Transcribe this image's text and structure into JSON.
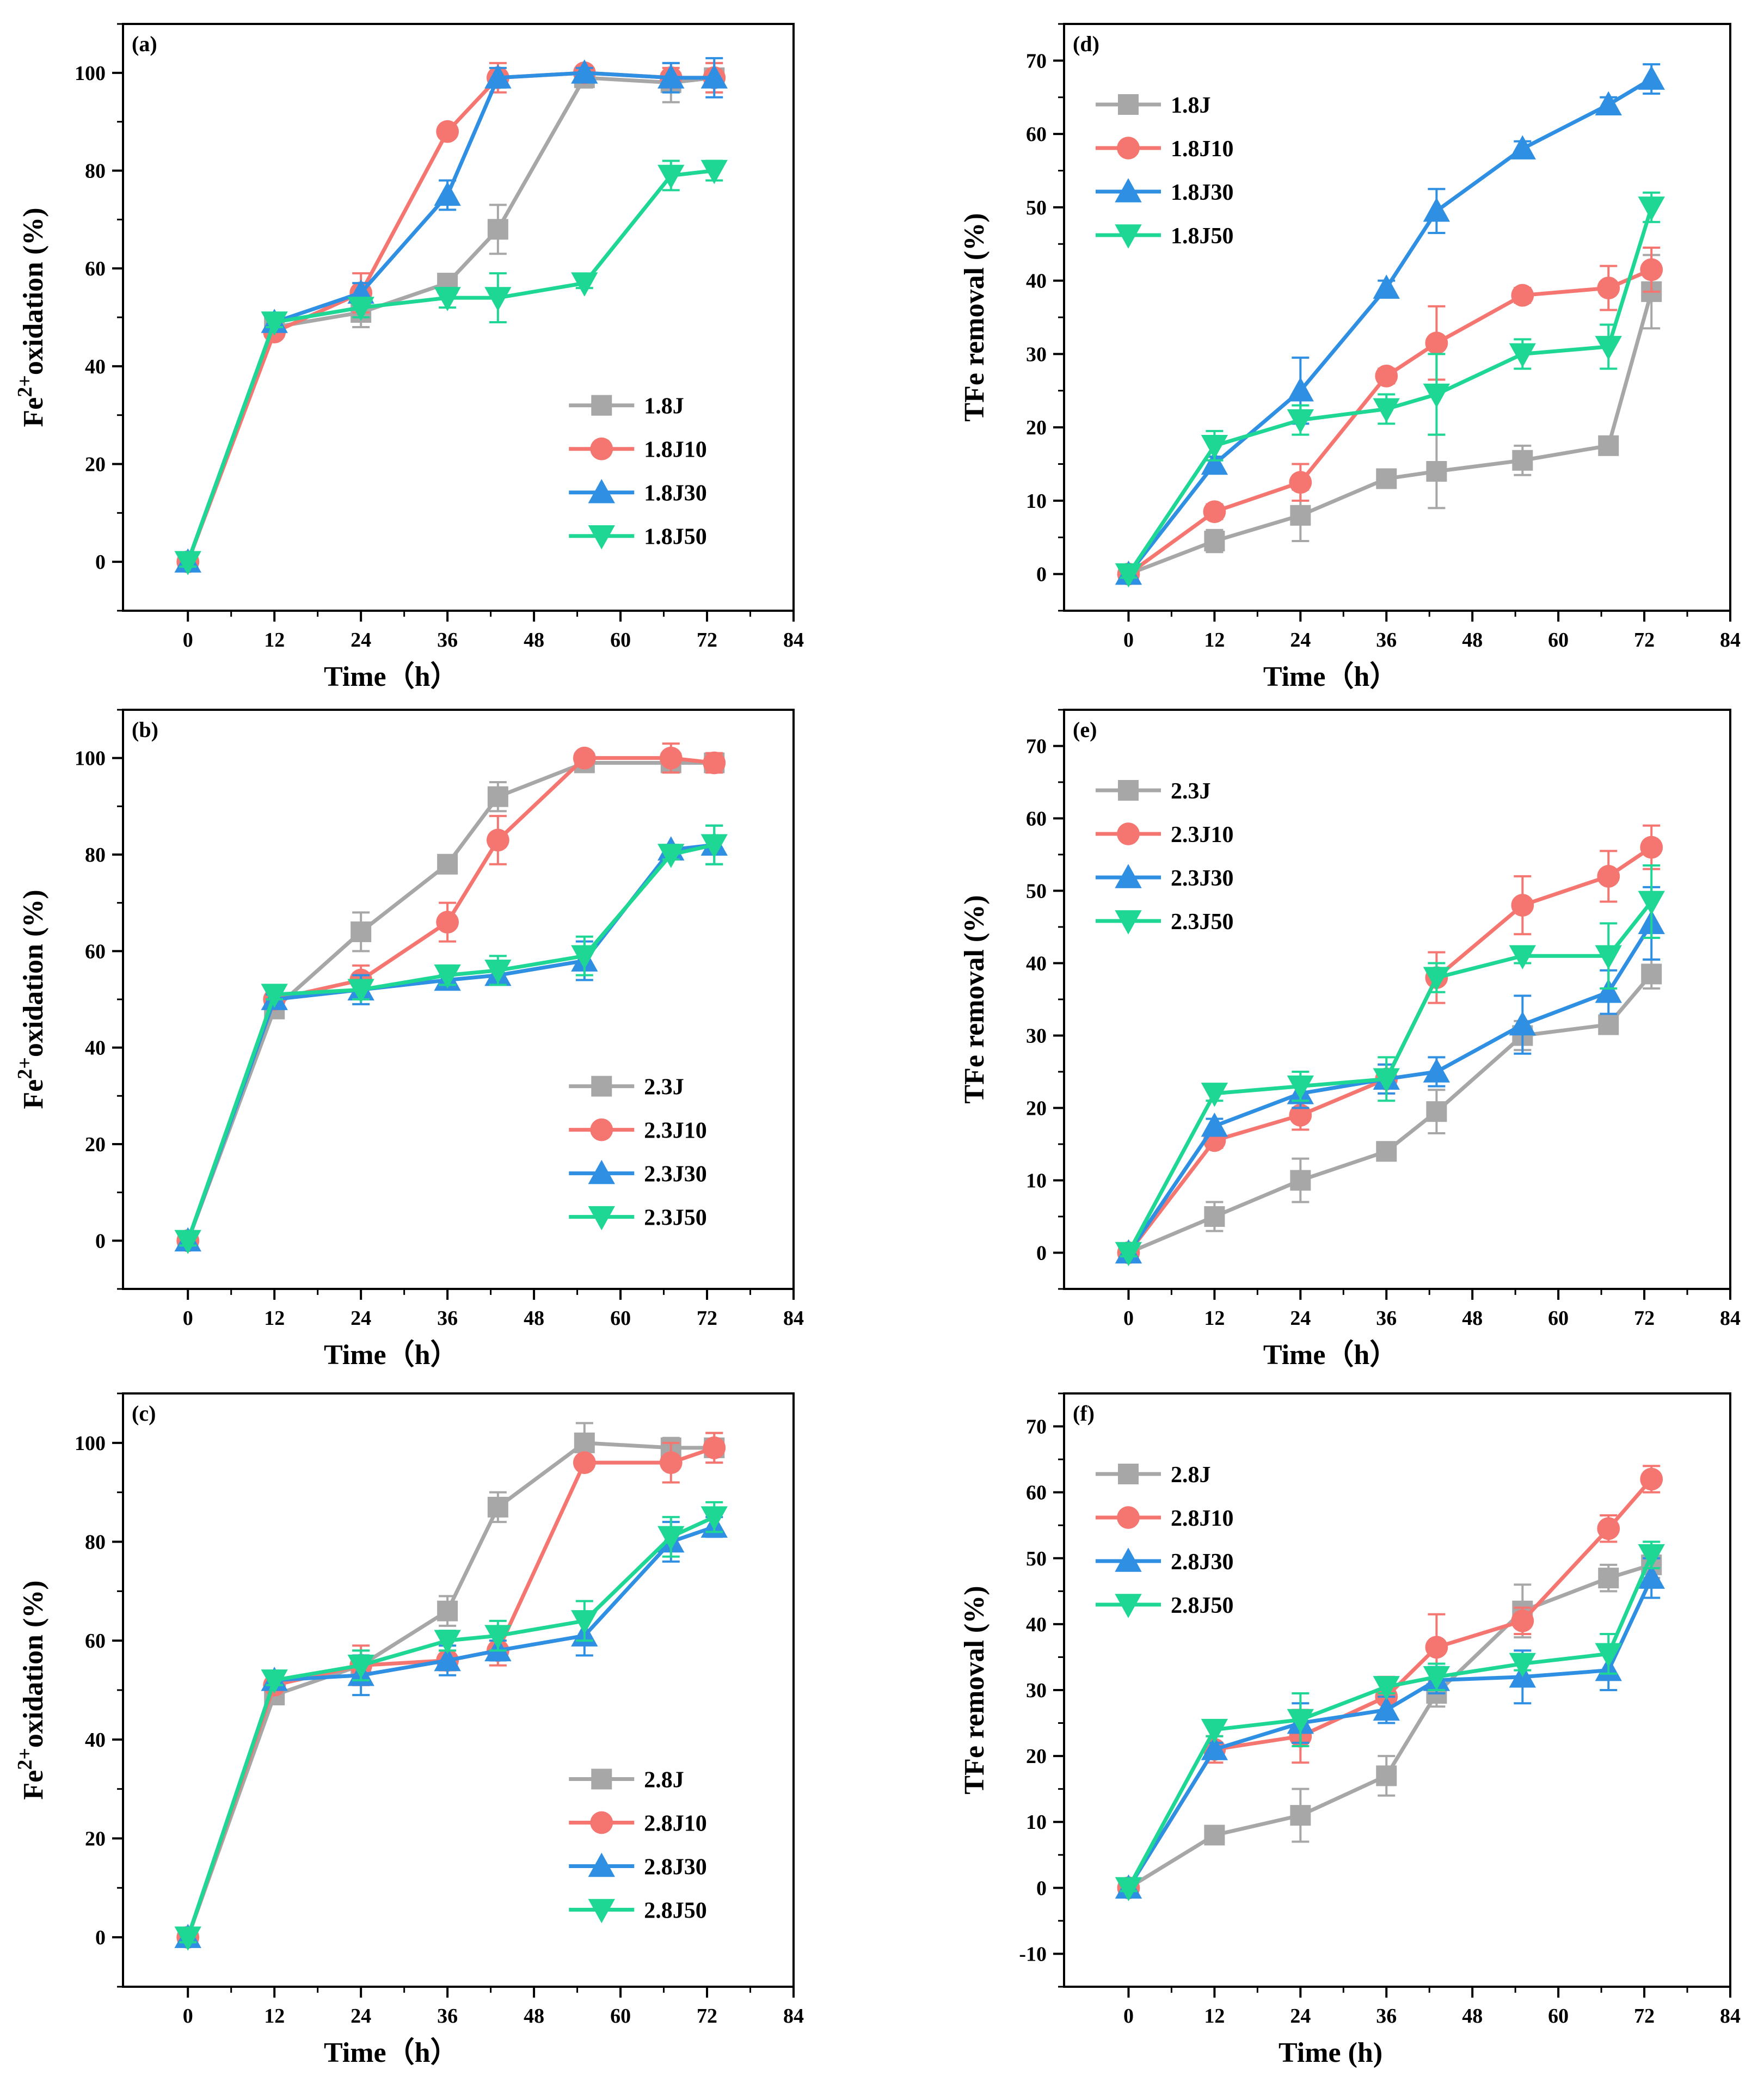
{
  "colors": {
    "J": "#a7a7a7",
    "J10": "#f57670",
    "J30": "#2e8fe3",
    "J50": "#1ed795"
  },
  "chart_data": [
    {
      "type": "line",
      "panel": "(a)",
      "xlabel": "Time（h）",
      "ylabel_main": "Fe",
      "ylabel_sup": "2+",
      "ylabel_rest": "oxidation (%)",
      "xlim": [
        -9,
        84
      ],
      "ylim": [
        -10,
        110
      ],
      "xticks": [
        0,
        12,
        24,
        36,
        48,
        60,
        72,
        84
      ],
      "yticks": [
        0,
        20,
        40,
        60,
        80,
        100
      ],
      "legend_position": "lower-right",
      "series": [
        {
          "name": "1.8J",
          "key": "J",
          "marker": "square",
          "x": [
            0,
            12,
            24,
            36,
            43,
            55,
            67,
            73
          ],
          "y": [
            0,
            48,
            51,
            57,
            68,
            99,
            98,
            99
          ],
          "err": [
            1,
            1,
            3,
            1,
            5,
            2,
            4,
            3
          ]
        },
        {
          "name": "1.8J10",
          "key": "J10",
          "marker": "circle",
          "x": [
            0,
            12,
            24,
            36,
            43,
            55,
            67,
            73
          ],
          "y": [
            0,
            47,
            55,
            88,
            99,
            100,
            99,
            99
          ],
          "err": [
            1,
            1,
            4,
            1,
            3,
            1,
            2,
            3
          ]
        },
        {
          "name": "1.8J30",
          "key": "J30",
          "marker": "triangle-up",
          "x": [
            0,
            12,
            24,
            36,
            43,
            55,
            67,
            73
          ],
          "y": [
            0,
            49,
            55,
            75,
            99,
            100,
            99,
            99
          ],
          "err": [
            1,
            1,
            2,
            3,
            2,
            1,
            3,
            4
          ]
        },
        {
          "name": "1.8J50",
          "key": "J50",
          "marker": "triangle-down",
          "x": [
            0,
            12,
            24,
            36,
            43,
            55,
            67,
            73
          ],
          "y": [
            0,
            49,
            52,
            54,
            54,
            57,
            79,
            80
          ],
          "err": [
            1,
            1,
            2,
            2,
            5,
            1,
            3,
            2
          ]
        }
      ]
    },
    {
      "type": "line",
      "panel": "(b)",
      "xlabel": "Time（h）",
      "ylabel_main": "Fe",
      "ylabel_sup": "2+",
      "ylabel_rest": "oxidation  (%)",
      "xlim": [
        -9,
        84
      ],
      "ylim": [
        -10,
        110
      ],
      "xticks": [
        0,
        12,
        24,
        36,
        48,
        60,
        72,
        84
      ],
      "yticks": [
        0,
        20,
        40,
        60,
        80,
        100
      ],
      "legend_position": "lower-right",
      "series": [
        {
          "name": "2.3J",
          "key": "J",
          "marker": "square",
          "x": [
            0,
            12,
            24,
            36,
            43,
            55,
            67,
            73
          ],
          "y": [
            0,
            48,
            64,
            78,
            92,
            99,
            99,
            99
          ],
          "err": [
            1,
            1,
            4,
            1,
            3,
            1,
            2,
            2
          ]
        },
        {
          "name": "2.3J10",
          "key": "J10",
          "marker": "circle",
          "x": [
            0,
            12,
            24,
            36,
            43,
            55,
            67,
            73
          ],
          "y": [
            0,
            50,
            54,
            66,
            83,
            100,
            100,
            99
          ],
          "err": [
            1,
            1,
            3,
            4,
            5,
            1,
            3,
            2
          ]
        },
        {
          "name": "2.3J30",
          "key": "J30",
          "marker": "triangle-up",
          "x": [
            0,
            12,
            24,
            36,
            43,
            55,
            67,
            73
          ],
          "y": [
            0,
            50,
            52,
            54,
            55,
            58,
            81,
            82
          ],
          "err": [
            1,
            1,
            3,
            1,
            2,
            4,
            1,
            4
          ]
        },
        {
          "name": "2.3J50",
          "key": "J50",
          "marker": "triangle-down",
          "x": [
            0,
            12,
            24,
            36,
            43,
            55,
            67,
            73
          ],
          "y": [
            0,
            51,
            52,
            55,
            56,
            59,
            80,
            82
          ],
          "err": [
            1,
            1,
            2,
            2,
            3,
            4,
            1,
            4
          ]
        }
      ]
    },
    {
      "type": "line",
      "panel": "(c)",
      "xlabel": "Time（h）",
      "ylabel_main": "Fe",
      "ylabel_sup": "2+",
      "ylabel_rest": "oxidation (%)",
      "xlim": [
        -9,
        84
      ],
      "ylim": [
        -10,
        110
      ],
      "xticks": [
        0,
        12,
        24,
        36,
        48,
        60,
        72,
        84
      ],
      "yticks": [
        0,
        20,
        40,
        60,
        80,
        100
      ],
      "legend_position": "lower-right",
      "series": [
        {
          "name": "2.8J",
          "key": "J",
          "marker": "square",
          "x": [
            0,
            12,
            24,
            36,
            43,
            55,
            67,
            73
          ],
          "y": [
            0,
            49,
            55,
            66,
            87,
            100,
            99,
            99
          ],
          "err": [
            1,
            1,
            3,
            3,
            3,
            4,
            2,
            3
          ]
        },
        {
          "name": "2.8J10",
          "key": "J10",
          "marker": "circle",
          "x": [
            0,
            12,
            24,
            36,
            43,
            55,
            67,
            73
          ],
          "y": [
            0,
            51,
            55,
            56,
            58,
            96,
            96,
            99
          ],
          "err": [
            1,
            1,
            4,
            2,
            3,
            1,
            4,
            3
          ]
        },
        {
          "name": "2.8J30",
          "key": "J30",
          "marker": "triangle-up",
          "x": [
            0,
            12,
            24,
            36,
            43,
            55,
            67,
            73
          ],
          "y": [
            0,
            52,
            53,
            56,
            58,
            61,
            80,
            83
          ],
          "err": [
            1,
            1,
            4,
            3,
            2,
            4,
            4,
            2
          ]
        },
        {
          "name": "2.8J50",
          "key": "J50",
          "marker": "triangle-down",
          "x": [
            0,
            12,
            24,
            36,
            43,
            55,
            67,
            73
          ],
          "y": [
            0,
            52,
            55,
            60,
            61,
            64,
            81,
            85
          ],
          "err": [
            1,
            1,
            3,
            2,
            3,
            4,
            4,
            3
          ]
        }
      ]
    },
    {
      "type": "line",
      "panel": "(d)",
      "xlabel": "Time（h）",
      "ylabel": "TFe  removal (%)",
      "xlim": [
        -9,
        84
      ],
      "ylim": [
        -5,
        75
      ],
      "xticks": [
        0,
        12,
        24,
        36,
        48,
        60,
        72,
        84
      ],
      "yticks": [
        0,
        10,
        20,
        30,
        40,
        50,
        60,
        70
      ],
      "legend_position": "upper-left",
      "series": [
        {
          "name": "1.8J",
          "key": "J",
          "marker": "square",
          "x": [
            0,
            12,
            24,
            36,
            43,
            55,
            67,
            73
          ],
          "y": [
            0,
            4.5,
            8,
            13,
            14,
            15.5,
            17.5,
            38.5
          ],
          "err": [
            0.5,
            1.5,
            3.5,
            1,
            5,
            2,
            1,
            5
          ]
        },
        {
          "name": "1.8J10",
          "key": "J10",
          "marker": "circle",
          "x": [
            0,
            12,
            24,
            36,
            43,
            55,
            67,
            73
          ],
          "y": [
            0,
            8.5,
            12.5,
            27,
            31.5,
            38,
            39,
            41.5
          ],
          "err": [
            0.5,
            1,
            2.5,
            1,
            5,
            1,
            3,
            3
          ]
        },
        {
          "name": "1.8J30",
          "key": "J30",
          "marker": "triangle-up",
          "x": [
            0,
            12,
            24,
            36,
            43,
            55,
            67,
            73
          ],
          "y": [
            0,
            15,
            25,
            39,
            49.5,
            58,
            64,
            67.5
          ],
          "err": [
            0.5,
            1,
            4.5,
            1,
            3,
            1,
            1,
            2
          ]
        },
        {
          "name": "1.8J50",
          "key": "J50",
          "marker": "triangle-down",
          "x": [
            0,
            12,
            24,
            36,
            43,
            55,
            67,
            73
          ],
          "y": [
            0,
            17.5,
            21,
            22.5,
            24.5,
            30,
            31,
            50
          ],
          "err": [
            0.5,
            2,
            2,
            2,
            5.5,
            2,
            3,
            2
          ]
        }
      ]
    },
    {
      "type": "line",
      "panel": "(e)",
      "xlabel": "Time（h）",
      "ylabel": "TFe  removal (%)",
      "xlim": [
        -9,
        84
      ],
      "ylim": [
        -5,
        75
      ],
      "xticks": [
        0,
        12,
        24,
        36,
        48,
        60,
        72,
        84
      ],
      "yticks": [
        0,
        10,
        20,
        30,
        40,
        50,
        60,
        70
      ],
      "legend_position": "upper-left",
      "series": [
        {
          "name": "2.3J",
          "key": "J",
          "marker": "square",
          "x": [
            0,
            12,
            24,
            36,
            43,
            55,
            67,
            73
          ],
          "y": [
            0,
            5,
            10,
            14,
            19.5,
            30,
            31.5,
            38.5
          ],
          "err": [
            0.5,
            2,
            3,
            1,
            3,
            2,
            1,
            2
          ]
        },
        {
          "name": "2.3J10",
          "key": "J10",
          "marker": "circle",
          "x": [
            0,
            12,
            24,
            36,
            43,
            55,
            67,
            73
          ],
          "y": [
            0,
            15.5,
            19,
            24,
            38,
            48,
            52,
            56
          ],
          "err": [
            0.5,
            1,
            2,
            2,
            3.5,
            4,
            3.5,
            3
          ]
        },
        {
          "name": "2.3J30",
          "key": "J30",
          "marker": "triangle-up",
          "x": [
            0,
            12,
            24,
            36,
            43,
            55,
            67,
            73
          ],
          "y": [
            0,
            17.5,
            22,
            24,
            25,
            31.5,
            36,
            45.5
          ],
          "err": [
            0.5,
            1,
            2,
            2,
            2,
            4,
            3,
            5
          ]
        },
        {
          "name": "2.3J50",
          "key": "J50",
          "marker": "triangle-down",
          "x": [
            0,
            12,
            24,
            36,
            43,
            55,
            67,
            73
          ],
          "y": [
            0,
            22,
            23,
            24,
            38,
            41,
            41,
            48.5
          ],
          "err": [
            0.5,
            1,
            2,
            3,
            2,
            1,
            4.5,
            5
          ]
        }
      ]
    },
    {
      "type": "line",
      "panel": "(f)",
      "xlabel": "Time (h)",
      "ylabel": "TFe  removal (%)",
      "xlim": [
        -9,
        84
      ],
      "ylim": [
        -15,
        75
      ],
      "xticks": [
        0,
        12,
        24,
        36,
        48,
        60,
        72,
        84
      ],
      "yticks": [
        -10,
        0,
        10,
        20,
        30,
        40,
        50,
        60,
        70
      ],
      "legend_position": "upper-left",
      "series": [
        {
          "name": "2.8J",
          "key": "J",
          "marker": "square",
          "x": [
            0,
            12,
            24,
            36,
            43,
            55,
            67,
            73
          ],
          "y": [
            0,
            8,
            11,
            17,
            29.5,
            42,
            47,
            49
          ],
          "err": [
            0.5,
            1,
            4,
            3,
            2,
            4,
            2,
            2
          ]
        },
        {
          "name": "2.8J10",
          "key": "J10",
          "marker": "circle",
          "x": [
            0,
            12,
            24,
            36,
            43,
            55,
            67,
            73
          ],
          "y": [
            0,
            21,
            23,
            29,
            36.5,
            40.5,
            54.5,
            62
          ],
          "err": [
            0.5,
            2,
            4,
            3,
            5,
            2,
            2,
            2
          ]
        },
        {
          "name": "2.8J30",
          "key": "J30",
          "marker": "triangle-up",
          "x": [
            0,
            12,
            24,
            36,
            43,
            55,
            67,
            73
          ],
          "y": [
            0,
            21,
            25,
            27,
            31.5,
            32,
            33,
            47
          ],
          "err": [
            0.5,
            1,
            3,
            2,
            2,
            4,
            3,
            3
          ]
        },
        {
          "name": "2.8J50",
          "key": "J50",
          "marker": "triangle-down",
          "x": [
            0,
            12,
            24,
            36,
            43,
            55,
            67,
            73
          ],
          "y": [
            0,
            24,
            25.5,
            30.5,
            32,
            34,
            35.5,
            50.5
          ],
          "err": [
            0.5,
            1,
            4,
            1,
            2,
            1,
            3,
            2
          ]
        }
      ]
    }
  ]
}
